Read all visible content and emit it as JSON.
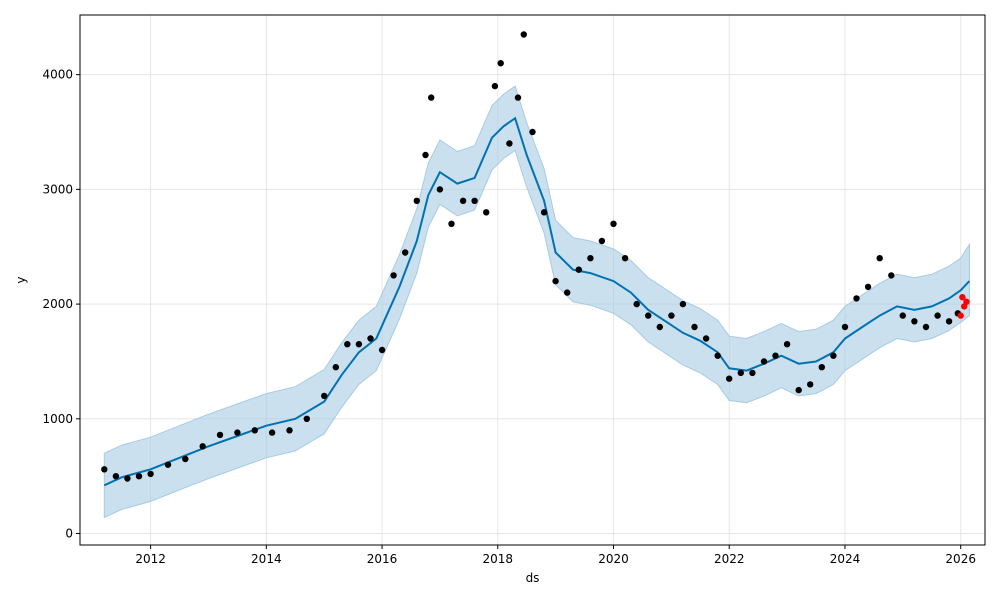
{
  "chart_data": {
    "type": "line",
    "title": "",
    "xlabel": "ds",
    "ylabel": "y",
    "xlim": [
      2010.78,
      2026.42
    ],
    "ylim": [
      -100,
      4520
    ],
    "x_ticks": [
      2012,
      2014,
      2016,
      2018,
      2020,
      2022,
      2024,
      2026
    ],
    "x_tick_labels": [
      "2012",
      "2014",
      "2016",
      "2018",
      "2020",
      "2022",
      "2024",
      "2026"
    ],
    "y_ticks": [
      0,
      1000,
      2000,
      3000,
      4000
    ],
    "y_tick_labels": [
      "0",
      "1000",
      "2000",
      "3000",
      "4000"
    ],
    "grid": true,
    "colors": {
      "forecast_line": "#0072B2",
      "interval_fill": "#A6CBE3",
      "actual_points": "#000000",
      "holdout_points": "#FF0000"
    },
    "series": [
      {
        "kind": "forecast",
        "x": [
          2011.2,
          2011.5,
          2012.0,
          2012.5,
          2013.0,
          2013.5,
          2014.0,
          2014.5,
          2015.0,
          2015.3,
          2015.6,
          2015.9,
          2016.3,
          2016.6,
          2016.8,
          2017.0,
          2017.3,
          2017.6,
          2017.9,
          2018.1,
          2018.3,
          2018.5,
          2018.8,
          2019.0,
          2019.3,
          2019.6,
          2020.0,
          2020.3,
          2020.6,
          2020.9,
          2021.2,
          2021.5,
          2021.8,
          2022.0,
          2022.3,
          2022.6,
          2022.9,
          2023.2,
          2023.5,
          2023.8,
          2024.0,
          2024.3,
          2024.6,
          2024.9,
          2025.2,
          2025.5,
          2025.8,
          2026.0,
          2026.15
        ],
        "y": [
          420,
          490,
          560,
          660,
          760,
          850,
          940,
          1000,
          1150,
          1380,
          1580,
          1700,
          2150,
          2550,
          2950,
          3150,
          3050,
          3100,
          3450,
          3550,
          3620,
          3300,
          2900,
          2450,
          2300,
          2270,
          2200,
          2100,
          1950,
          1850,
          1750,
          1680,
          1580,
          1440,
          1420,
          1480,
          1550,
          1480,
          1500,
          1580,
          1700,
          1800,
          1900,
          1980,
          1950,
          1980,
          2050,
          2120,
          2200
        ]
      },
      {
        "kind": "interval_upper",
        "x": [
          2011.2,
          2011.5,
          2012.0,
          2012.5,
          2013.0,
          2013.5,
          2014.0,
          2014.5,
          2015.0,
          2015.3,
          2015.6,
          2015.9,
          2016.3,
          2016.6,
          2016.8,
          2017.0,
          2017.3,
          2017.6,
          2017.9,
          2018.1,
          2018.3,
          2018.5,
          2018.8,
          2019.0,
          2019.3,
          2019.6,
          2020.0,
          2020.3,
          2020.6,
          2020.9,
          2021.2,
          2021.5,
          2021.8,
          2022.0,
          2022.3,
          2022.6,
          2022.9,
          2023.2,
          2023.5,
          2023.8,
          2024.0,
          2024.3,
          2024.6,
          2024.9,
          2025.2,
          2025.5,
          2025.8,
          2026.0,
          2026.15
        ],
        "y": [
          700,
          770,
          840,
          940,
          1040,
          1130,
          1220,
          1280,
          1430,
          1660,
          1860,
          1980,
          2430,
          2830,
          3230,
          3430,
          3330,
          3380,
          3730,
          3830,
          3900,
          3580,
          3180,
          2730,
          2580,
          2550,
          2480,
          2380,
          2230,
          2130,
          2030,
          1960,
          1860,
          1720,
          1700,
          1760,
          1830,
          1760,
          1780,
          1860,
          1980,
          2080,
          2180,
          2260,
          2230,
          2260,
          2330,
          2400,
          2520
        ]
      },
      {
        "kind": "interval_lower",
        "x": [
          2011.2,
          2011.5,
          2012.0,
          2012.5,
          2013.0,
          2013.5,
          2014.0,
          2014.5,
          2015.0,
          2015.3,
          2015.6,
          2015.9,
          2016.3,
          2016.6,
          2016.8,
          2017.0,
          2017.3,
          2017.6,
          2017.9,
          2018.1,
          2018.3,
          2018.5,
          2018.8,
          2019.0,
          2019.3,
          2019.6,
          2020.0,
          2020.3,
          2020.6,
          2020.9,
          2021.2,
          2021.5,
          2021.8,
          2022.0,
          2022.3,
          2022.6,
          2022.9,
          2023.2,
          2023.5,
          2023.8,
          2024.0,
          2024.3,
          2024.6,
          2024.9,
          2025.2,
          2025.5,
          2025.8,
          2026.0,
          2026.15
        ],
        "y": [
          140,
          210,
          280,
          380,
          480,
          570,
          660,
          720,
          870,
          1100,
          1300,
          1420,
          1870,
          2270,
          2670,
          2870,
          2770,
          2820,
          3170,
          3270,
          3340,
          3020,
          2620,
          2170,
          2020,
          1990,
          1920,
          1820,
          1670,
          1570,
          1470,
          1400,
          1300,
          1160,
          1140,
          1200,
          1270,
          1200,
          1220,
          1300,
          1420,
          1520,
          1620,
          1700,
          1670,
          1700,
          1770,
          1840,
          1900
        ]
      },
      {
        "kind": "actual",
        "x": [
          2011.2,
          2011.4,
          2011.6,
          2011.8,
          2012.0,
          2012.3,
          2012.6,
          2012.9,
          2013.2,
          2013.5,
          2013.8,
          2014.1,
          2014.4,
          2014.7,
          2015.0,
          2015.2,
          2015.4,
          2015.6,
          2015.8,
          2016.0,
          2016.2,
          2016.4,
          2016.6,
          2016.75,
          2016.85,
          2017.0,
          2017.2,
          2017.4,
          2017.6,
          2017.8,
          2017.95,
          2018.05,
          2018.2,
          2018.35,
          2018.45,
          2018.6,
          2018.8,
          2019.0,
          2019.2,
          2019.4,
          2019.6,
          2019.8,
          2020.0,
          2020.2,
          2020.4,
          2020.6,
          2020.8,
          2021.0,
          2021.2,
          2021.4,
          2021.6,
          2021.8,
          2022.0,
          2022.2,
          2022.4,
          2022.6,
          2022.8,
          2023.0,
          2023.2,
          2023.4,
          2023.6,
          2023.8,
          2024.0,
          2024.2,
          2024.4,
          2024.6,
          2024.8,
          2025.0,
          2025.2,
          2025.4,
          2025.6,
          2025.8,
          2025.95
        ],
        "y": [
          560,
          500,
          480,
          500,
          520,
          600,
          650,
          760,
          860,
          880,
          900,
          880,
          900,
          1000,
          1200,
          1450,
          1650,
          1650,
          1700,
          1600,
          2250,
          2450,
          2900,
          3300,
          3800,
          3000,
          2700,
          2900,
          2900,
          2800,
          3900,
          4100,
          3400,
          3800,
          4350,
          3500,
          2800,
          2200,
          2100,
          2300,
          2400,
          2550,
          2700,
          2400,
          2000,
          1900,
          1800,
          1900,
          2000,
          1800,
          1700,
          1550,
          1350,
          1400,
          1400,
          1500,
          1550,
          1650,
          1250,
          1300,
          1450,
          1550,
          1800,
          2050,
          2150,
          2400,
          2250,
          1900,
          1850,
          1800,
          1900,
          1850,
          1920
        ]
      },
      {
        "kind": "holdout",
        "x": [
          2026.0,
          2026.03,
          2026.06,
          2026.1
        ],
        "y": [
          1900,
          2060,
          1980,
          2020
        ]
      }
    ]
  }
}
